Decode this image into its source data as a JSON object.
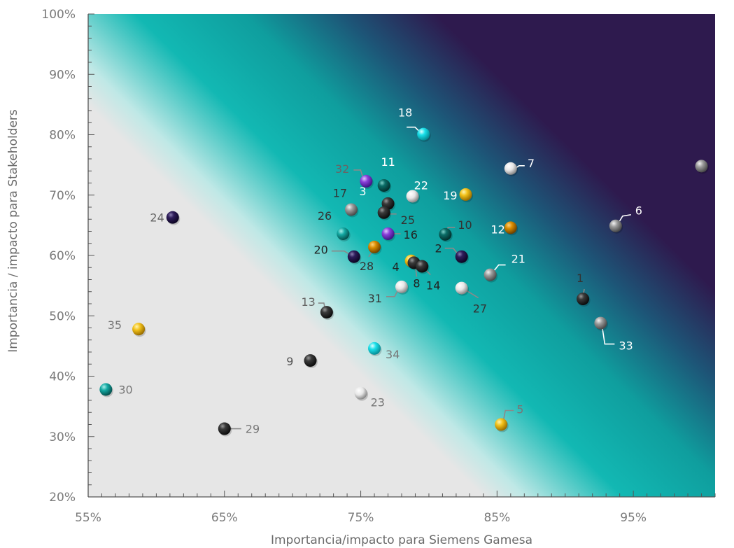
{
  "chart_data": {
    "type": "scatter",
    "title": "",
    "xlabel": "Importancia/impacto para Siemens Gamesa",
    "ylabel": "Importancia / impacto para Stakeholders",
    "xlim": [
      55,
      101
    ],
    "ylim": [
      20,
      100
    ],
    "x_ticks": [
      {
        "value": 55,
        "label": "55%"
      },
      {
        "value": 65,
        "label": "65%"
      },
      {
        "value": 75,
        "label": "75%"
      },
      {
        "value": 85,
        "label": "85%"
      },
      {
        "value": 95,
        "label": "95%"
      }
    ],
    "y_ticks": [
      {
        "value": 20,
        "label": "20%"
      },
      {
        "value": 30,
        "label": "30%"
      },
      {
        "value": 40,
        "label": "40%"
      },
      {
        "value": 50,
        "label": "50%"
      },
      {
        "value": 60,
        "label": "60%"
      },
      {
        "value": 70,
        "label": "70%"
      },
      {
        "value": 80,
        "label": "80%"
      },
      {
        "value": 90,
        "label": "90%"
      },
      {
        "value": 100,
        "label": "100%"
      }
    ],
    "grid": false,
    "background": "diagonal gradient: light grey (bottom-left) to teal to dark purple (top-right)",
    "colors": {
      "teal": "#0fb5b0",
      "purple_dark": "#2e1a4e",
      "grey_zone": "#e6e6e6",
      "axis": "#555555"
    },
    "points": [
      {
        "id": "1",
        "x": 91.3,
        "y": 52.8,
        "color": "black",
        "label_color": "#333333"
      },
      {
        "id": "2",
        "x": 82.4,
        "y": 59.8,
        "color": "navy",
        "label_color": "#222222"
      },
      {
        "id": "3",
        "x": 77.0,
        "y": 68.6,
        "color": "black",
        "label_color": "#ffffff"
      },
      {
        "id": "4",
        "x": 78.7,
        "y": 59.1,
        "color": "gold",
        "label_color": "#222222"
      },
      {
        "id": "5",
        "x": 85.3,
        "y": 32.0,
        "color": "gold",
        "label_color": "#777777"
      },
      {
        "id": "6",
        "x": 93.7,
        "y": 64.9,
        "color": "grey",
        "label_color": "#ffffff"
      },
      {
        "id": "7",
        "x": 86.0,
        "y": 74.4,
        "color": "white",
        "label_color": "#ffffff"
      },
      {
        "id": "8",
        "x": 78.9,
        "y": 58.8,
        "color": "black",
        "label_color": "#222222"
      },
      {
        "id": "9",
        "x": 71.3,
        "y": 42.6,
        "color": "black",
        "label_color": "#555555"
      },
      {
        "id": "10",
        "x": 81.2,
        "y": 63.5,
        "color": "teal_dark",
        "label_color": "#333333"
      },
      {
        "id": "11",
        "x": 76.7,
        "y": 71.6,
        "color": "teal_dark",
        "label_color": "#ffffff"
      },
      {
        "id": "12",
        "x": 86.0,
        "y": 64.6,
        "color": "orange",
        "label_color": "#ffffff"
      },
      {
        "id": "13",
        "x": 72.5,
        "y": 50.6,
        "color": "black",
        "label_color": "#666666"
      },
      {
        "id": "14",
        "x": 79.5,
        "y": 58.2,
        "color": "black",
        "label_color": "#222222"
      },
      {
        "id": "15",
        "x": 100.0,
        "y": 74.8,
        "color": "grey",
        "label_color": "#ffffff"
      },
      {
        "id": "16",
        "x": 77.0,
        "y": 63.6,
        "color": "violet",
        "label_color": "#222222"
      },
      {
        "id": "17",
        "x": 74.3,
        "y": 67.6,
        "color": "grey",
        "label_color": "#333333"
      },
      {
        "id": "18",
        "x": 79.6,
        "y": 80.1,
        "color": "cyan",
        "label_color": "#ffffff"
      },
      {
        "id": "19",
        "x": 82.7,
        "y": 70.1,
        "color": "gold",
        "label_color": "#ffffff"
      },
      {
        "id": "20",
        "x": 74.5,
        "y": 59.8,
        "color": "navy",
        "label_color": "#222222"
      },
      {
        "id": "21",
        "x": 84.5,
        "y": 56.8,
        "color": "grey",
        "label_color": "#ffffff"
      },
      {
        "id": "22",
        "x": 78.8,
        "y": 69.8,
        "color": "white",
        "label_color": "#ffffff"
      },
      {
        "id": "23",
        "x": 75.0,
        "y": 37.2,
        "color": "white",
        "label_color": "#777777"
      },
      {
        "id": "24",
        "x": 61.2,
        "y": 66.3,
        "color": "navy",
        "label_color": "#666666"
      },
      {
        "id": "25",
        "x": 76.7,
        "y": 67.1,
        "color": "black",
        "label_color": "#333333"
      },
      {
        "id": "26",
        "x": 73.7,
        "y": 63.6,
        "color": "teal",
        "label_color": "#333333"
      },
      {
        "id": "27",
        "x": 82.4,
        "y": 54.6,
        "color": "white",
        "label_color": "#333333"
      },
      {
        "id": "28",
        "x": 76.0,
        "y": 61.4,
        "color": "orange",
        "label_color": "#333333"
      },
      {
        "id": "29",
        "x": 65.0,
        "y": 31.3,
        "color": "black",
        "label_color": "#777777"
      },
      {
        "id": "30",
        "x": 56.3,
        "y": 37.8,
        "color": "teal",
        "label_color": "#777777"
      },
      {
        "id": "31",
        "x": 78.0,
        "y": 54.8,
        "color": "white",
        "label_color": "#333333"
      },
      {
        "id": "32",
        "x": 75.4,
        "y": 72.3,
        "color": "violet",
        "label_color": "#666666"
      },
      {
        "id": "33",
        "x": 92.6,
        "y": 48.8,
        "color": "grey",
        "label_color": "#ffffff"
      },
      {
        "id": "34",
        "x": 76.0,
        "y": 44.6,
        "color": "cyan",
        "label_color": "#777777"
      },
      {
        "id": "35",
        "x": 58.7,
        "y": 47.8,
        "color": "gold",
        "label_color": "#777777"
      }
    ]
  }
}
